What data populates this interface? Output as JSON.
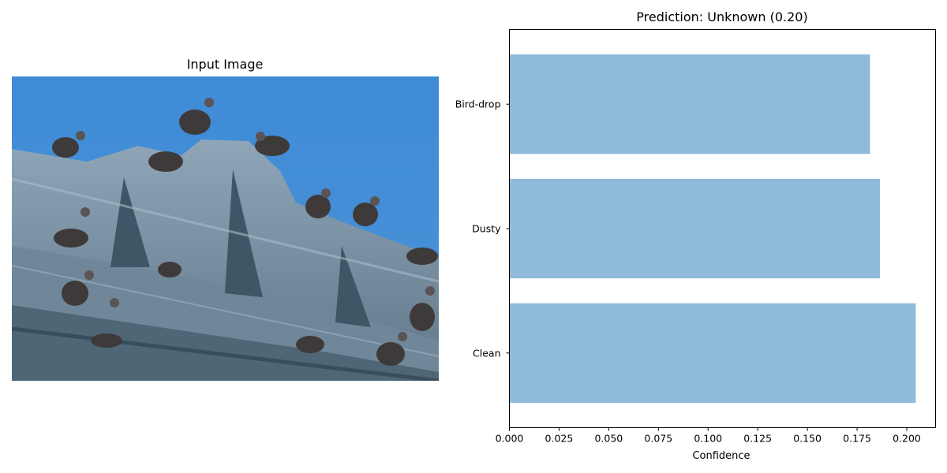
{
  "left_panel": {
    "title": "Input Image"
  },
  "chart_data": {
    "type": "bar",
    "orientation": "horizontal",
    "title": "Prediction: Unknown (0.20)",
    "xlabel": "Confidence",
    "ylabel": "",
    "categories": [
      "Clean",
      "Dusty",
      "Bird-drop"
    ],
    "values": [
      0.2045,
      0.1865,
      0.1815
    ],
    "xlim": [
      0.0,
      0.2145
    ],
    "xticks": [
      0.0,
      0.025,
      0.05,
      0.075,
      0.1,
      0.125,
      0.15,
      0.175,
      0.2
    ],
    "xtick_labels": [
      "0.000",
      "0.025",
      "0.050",
      "0.075",
      "0.100",
      "0.125",
      "0.150",
      "0.175",
      "0.200"
    ],
    "bar_color": "#8fbad9",
    "grid": false
  }
}
